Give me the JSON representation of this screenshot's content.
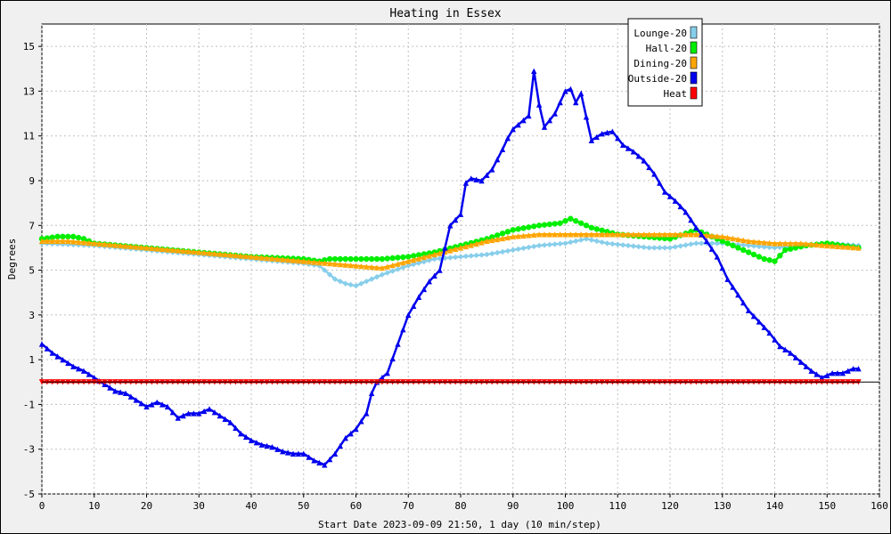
{
  "chart_data": {
    "type": "line",
    "title": "Heating in Essex",
    "xlabel": "Start Date 2023-09-09 21:50, 1 day (10 min/step)",
    "ylabel": "Degrees",
    "xlim": [
      0,
      160
    ],
    "ylim": [
      -5,
      16
    ],
    "x_ticks": [
      "0",
      "10",
      "20",
      "30",
      "40",
      "50",
      "60",
      "70",
      "80",
      "90",
      "100",
      "110",
      "120",
      "130",
      "140",
      "150",
      "160"
    ],
    "y_ticks": [
      "15",
      "13",
      "11",
      "9",
      "7",
      "5",
      "3",
      "1",
      "-1",
      "-3",
      "-5"
    ],
    "grid": true,
    "legend_position": "top-right",
    "series": [
      {
        "name": "Lounge-20",
        "color": "#87ceeb",
        "marker": "diamond",
        "points": [
          [
            0,
            6.2
          ],
          [
            10,
            6.1
          ],
          [
            20,
            5.9
          ],
          [
            30,
            5.7
          ],
          [
            40,
            5.5
          ],
          [
            50,
            5.3
          ],
          [
            53,
            5.2
          ],
          [
            56,
            4.6
          ],
          [
            58,
            4.4
          ],
          [
            60,
            4.3
          ],
          [
            62,
            4.5
          ],
          [
            65,
            4.8
          ],
          [
            70,
            5.2
          ],
          [
            75,
            5.5
          ],
          [
            80,
            5.6
          ],
          [
            85,
            5.7
          ],
          [
            90,
            5.9
          ],
          [
            95,
            6.1
          ],
          [
            100,
            6.2
          ],
          [
            104,
            6.4
          ],
          [
            108,
            6.2
          ],
          [
            112,
            6.1
          ],
          [
            116,
            6.0
          ],
          [
            120,
            6.0
          ],
          [
            125,
            6.2
          ],
          [
            130,
            6.2
          ],
          [
            135,
            6.1
          ],
          [
            140,
            6.0
          ],
          [
            145,
            6.1
          ],
          [
            150,
            6.2
          ],
          [
            156,
            6.1
          ]
        ]
      },
      {
        "name": "Hall-20",
        "color": "#00ee00",
        "marker": "circle",
        "points": [
          [
            0,
            6.4
          ],
          [
            3,
            6.5
          ],
          [
            6,
            6.5
          ],
          [
            8,
            6.4
          ],
          [
            10,
            6.2
          ],
          [
            20,
            6.0
          ],
          [
            30,
            5.8
          ],
          [
            40,
            5.6
          ],
          [
            50,
            5.5
          ],
          [
            53,
            5.4
          ],
          [
            55,
            5.5
          ],
          [
            60,
            5.5
          ],
          [
            65,
            5.5
          ],
          [
            70,
            5.6
          ],
          [
            75,
            5.8
          ],
          [
            80,
            6.1
          ],
          [
            85,
            6.4
          ],
          [
            90,
            6.8
          ],
          [
            95,
            7.0
          ],
          [
            99,
            7.1
          ],
          [
            101,
            7.3
          ],
          [
            105,
            6.9
          ],
          [
            110,
            6.6
          ],
          [
            115,
            6.5
          ],
          [
            120,
            6.4
          ],
          [
            125,
            6.8
          ],
          [
            130,
            6.3
          ],
          [
            135,
            5.8
          ],
          [
            138,
            5.5
          ],
          [
            140,
            5.4
          ],
          [
            142,
            5.9
          ],
          [
            146,
            6.1
          ],
          [
            150,
            6.2
          ],
          [
            156,
            6.0
          ]
        ]
      },
      {
        "name": "Dining-20",
        "color": "#ffa500",
        "marker": "triangle",
        "points": [
          [
            0,
            6.3
          ],
          [
            5,
            6.3
          ],
          [
            10,
            6.2
          ],
          [
            20,
            6.0
          ],
          [
            30,
            5.8
          ],
          [
            40,
            5.6
          ],
          [
            50,
            5.4
          ],
          [
            55,
            5.3
          ],
          [
            60,
            5.2
          ],
          [
            65,
            5.1
          ],
          [
            70,
            5.4
          ],
          [
            75,
            5.7
          ],
          [
            80,
            6.0
          ],
          [
            85,
            6.3
          ],
          [
            90,
            6.5
          ],
          [
            95,
            6.6
          ],
          [
            100,
            6.6
          ],
          [
            110,
            6.6
          ],
          [
            120,
            6.6
          ],
          [
            125,
            6.6
          ],
          [
            130,
            6.5
          ],
          [
            135,
            6.3
          ],
          [
            140,
            6.2
          ],
          [
            145,
            6.2
          ],
          [
            150,
            6.1
          ],
          [
            156,
            6.0
          ]
        ]
      },
      {
        "name": "Outside-20",
        "color": "#0000ee",
        "marker": "triangle",
        "points": [
          [
            0,
            1.7
          ],
          [
            2,
            1.3
          ],
          [
            4,
            1.0
          ],
          [
            6,
            0.7
          ],
          [
            8,
            0.5
          ],
          [
            10,
            0.2
          ],
          [
            12,
            -0.1
          ],
          [
            14,
            -0.4
          ],
          [
            16,
            -0.5
          ],
          [
            18,
            -0.8
          ],
          [
            20,
            -1.1
          ],
          [
            22,
            -0.9
          ],
          [
            24,
            -1.1
          ],
          [
            26,
            -1.6
          ],
          [
            28,
            -1.4
          ],
          [
            30,
            -1.4
          ],
          [
            32,
            -1.2
          ],
          [
            34,
            -1.5
          ],
          [
            36,
            -1.8
          ],
          [
            38,
            -2.3
          ],
          [
            40,
            -2.6
          ],
          [
            42,
            -2.8
          ],
          [
            44,
            -2.9
          ],
          [
            46,
            -3.1
          ],
          [
            48,
            -3.2
          ],
          [
            50,
            -3.2
          ],
          [
            52,
            -3.5
          ],
          [
            54,
            -3.7
          ],
          [
            56,
            -3.2
          ],
          [
            58,
            -2.5
          ],
          [
            60,
            -2.1
          ],
          [
            62,
            -1.4
          ],
          [
            63,
            -0.5
          ],
          [
            64,
            0.0
          ],
          [
            66,
            0.4
          ],
          [
            68,
            1.7
          ],
          [
            70,
            3.0
          ],
          [
            72,
            3.8
          ],
          [
            74,
            4.5
          ],
          [
            76,
            5.0
          ],
          [
            77,
            6.0
          ],
          [
            78,
            7.0
          ],
          [
            80,
            7.5
          ],
          [
            81,
            8.9
          ],
          [
            82,
            9.1
          ],
          [
            84,
            9.0
          ],
          [
            86,
            9.5
          ],
          [
            88,
            10.4
          ],
          [
            89,
            10.9
          ],
          [
            90,
            11.3
          ],
          [
            92,
            11.7
          ],
          [
            93,
            11.9
          ],
          [
            94,
            13.9
          ],
          [
            95,
            12.4
          ],
          [
            96,
            11.4
          ],
          [
            98,
            12.0
          ],
          [
            100,
            13.0
          ],
          [
            101,
            13.1
          ],
          [
            102,
            12.5
          ],
          [
            103,
            12.9
          ],
          [
            105,
            10.8
          ],
          [
            107,
            11.1
          ],
          [
            109,
            11.2
          ],
          [
            111,
            10.6
          ],
          [
            113,
            10.3
          ],
          [
            115,
            9.9
          ],
          [
            117,
            9.3
          ],
          [
            119,
            8.5
          ],
          [
            121,
            8.1
          ],
          [
            123,
            7.6
          ],
          [
            125,
            6.9
          ],
          [
            127,
            6.3
          ],
          [
            129,
            5.6
          ],
          [
            131,
            4.6
          ],
          [
            133,
            3.9
          ],
          [
            135,
            3.2
          ],
          [
            137,
            2.7
          ],
          [
            139,
            2.2
          ],
          [
            141,
            1.6
          ],
          [
            143,
            1.3
          ],
          [
            145,
            0.9
          ],
          [
            147,
            0.5
          ],
          [
            149,
            0.2
          ],
          [
            151,
            0.4
          ],
          [
            153,
            0.4
          ],
          [
            155,
            0.6
          ],
          [
            156,
            0.6
          ]
        ]
      },
      {
        "name": "Heat",
        "color": "#ff0000",
        "marker": "triangle-down",
        "points": [
          [
            0,
            0
          ],
          [
            156,
            0
          ]
        ]
      }
    ]
  }
}
